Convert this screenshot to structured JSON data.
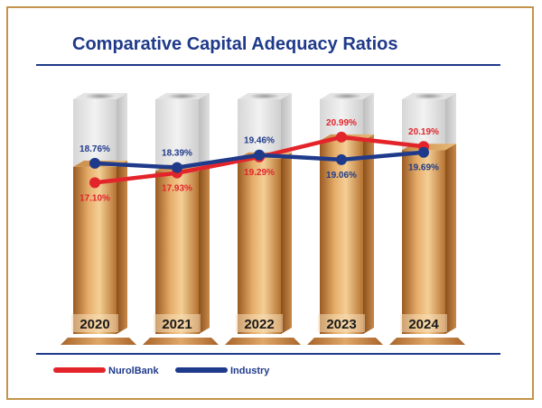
{
  "chart_data": {
    "type": "line",
    "title": "Comparative Capital Adequacy Ratios",
    "categories": [
      "2020",
      "2021",
      "2022",
      "2023",
      "2024"
    ],
    "series": [
      {
        "name": "NurolBank",
        "color": "#e3242b",
        "values": [
          17.1,
          17.93,
          19.29,
          20.99,
          20.19
        ],
        "labels": [
          "17.10%",
          "17.93%",
          "19.29%",
          "20.99%",
          "20.19%"
        ]
      },
      {
        "name": "Industry",
        "color": "#1f3a8a",
        "values": [
          18.76,
          18.39,
          19.46,
          19.06,
          19.69
        ],
        "labels": [
          "18.76%",
          "18.39%",
          "19.46%",
          "19.06%",
          "19.69%"
        ]
      }
    ],
    "xlabel": "",
    "ylabel": "",
    "legend": "bottom-left"
  },
  "colors": {
    "title": "#1f3a8a",
    "frame": "#c4944c",
    "rule": "#1f3a8a"
  }
}
